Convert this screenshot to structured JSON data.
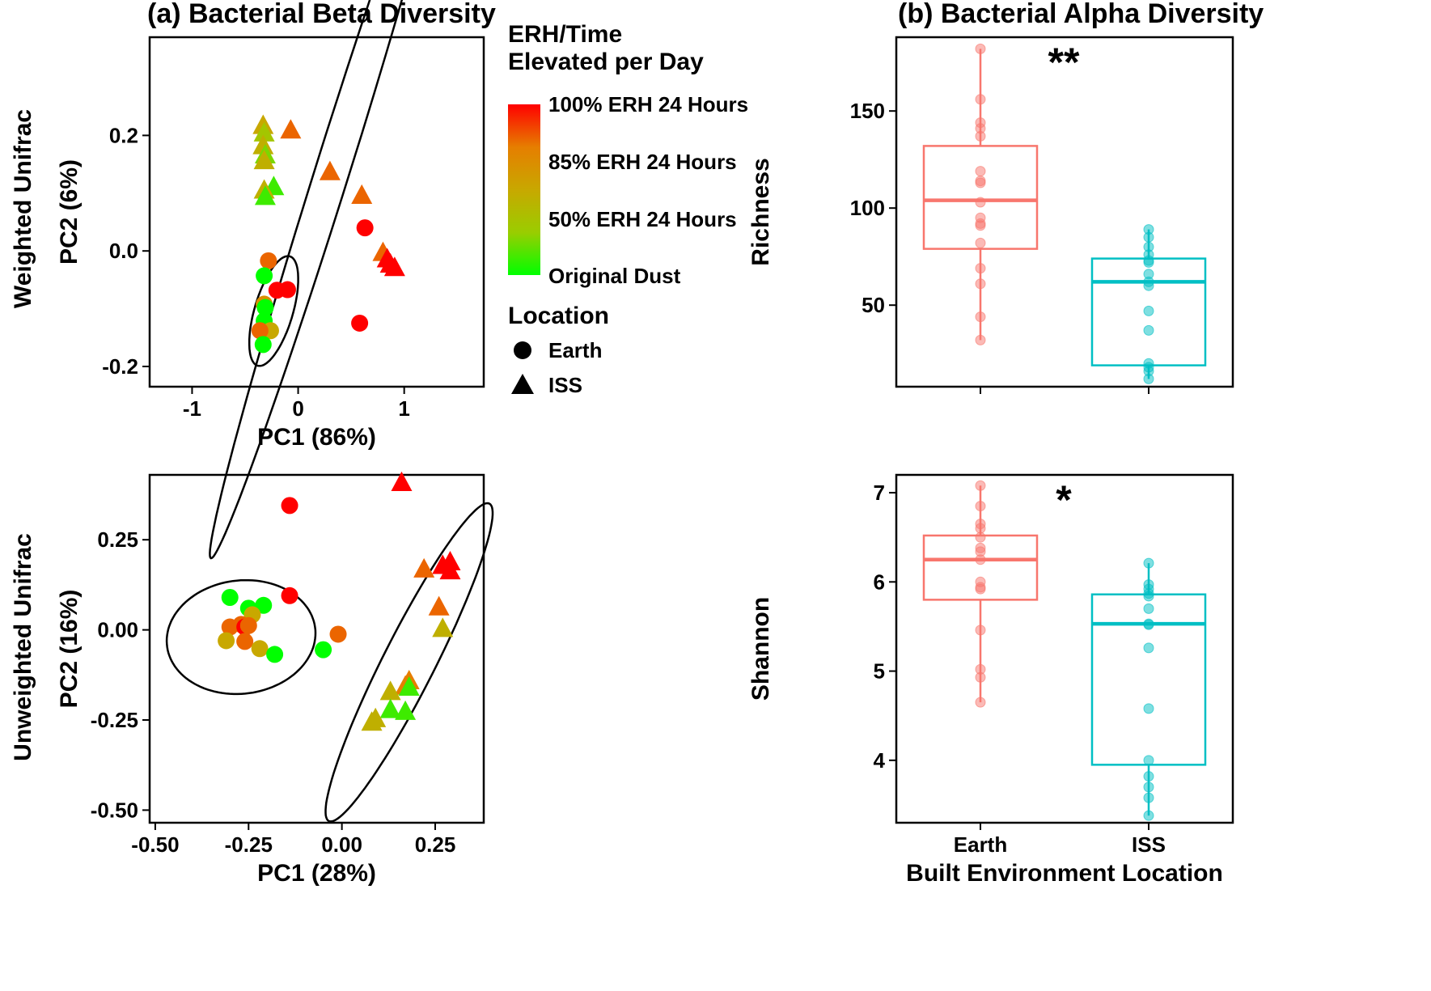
{
  "figure": {
    "panel_a_title": "(a) Bacterial Beta Diversity",
    "panel_b_title": "(b) Bacterial Alpha Diversity",
    "row_label_top": "Weighted Unifrac",
    "row_label_bottom": "Unweighted Unifrac",
    "legend": {
      "color_title_line1": "ERH/Time",
      "color_title_line2": "Elevated per Day",
      "color_labels": [
        "100% ERH 24 Hours",
        "85% ERH 24 Hours",
        "50% ERH 24 Hours",
        "Original Dust"
      ],
      "gradient_colors": [
        "#ff0000",
        "#e67e00",
        "#c8a800",
        "#9acd00",
        "#00ff00"
      ],
      "shape_title": "Location",
      "shape_labels": [
        "Earth",
        "ISS"
      ]
    }
  },
  "chart_data": [
    {
      "type": "scatter",
      "name": "weighted-unifrac",
      "xlabel": "PC1 (86%)",
      "ylabel": "PC2 (6%)",
      "xlim": [
        -1.4,
        1.75
      ],
      "ylim": [
        -0.235,
        0.37
      ],
      "xticks": [
        -1,
        0,
        1
      ],
      "xtick_labels": [
        "-1",
        "0",
        "1"
      ],
      "yticks": [
        -0.2,
        0.0,
        0.2
      ],
      "ytick_labels": [
        "-0.2",
        "0.0",
        "0.2"
      ],
      "ellipses": [
        {
          "cx": 0.32,
          "cy": 0.137,
          "rx": 1.33,
          "ry": 0.085,
          "angle_deg": 30
        },
        {
          "cx": -0.23,
          "cy": -0.104,
          "rx": 0.238,
          "ry": 0.075,
          "angle_deg": 15
        }
      ],
      "points": [
        {
          "x": -0.33,
          "y": 0.218,
          "loc": "ISS",
          "erh": 0.5
        },
        {
          "x": -0.32,
          "y": 0.205,
          "loc": "ISS",
          "erh": 0.3
        },
        {
          "x": -0.33,
          "y": 0.183,
          "loc": "ISS",
          "erh": 0.45
        },
        {
          "x": -0.31,
          "y": 0.167,
          "loc": "ISS",
          "erh": 0.2
        },
        {
          "x": -0.32,
          "y": 0.157,
          "loc": "ISS",
          "erh": 0.45
        },
        {
          "x": -0.23,
          "y": 0.112,
          "loc": "ISS",
          "erh": 0.1
        },
        {
          "x": -0.32,
          "y": 0.106,
          "loc": "ISS",
          "erh": 0.45
        },
        {
          "x": -0.31,
          "y": 0.095,
          "loc": "ISS",
          "erh": 0.1
        },
        {
          "x": -0.07,
          "y": 0.21,
          "loc": "ISS",
          "erh": 0.8
        },
        {
          "x": 0.3,
          "y": 0.138,
          "loc": "ISS",
          "erh": 0.8
        },
        {
          "x": 0.6,
          "y": 0.097,
          "loc": "ISS",
          "erh": 0.8
        },
        {
          "x": 0.8,
          "y": -0.002,
          "loc": "ISS",
          "erh": 0.8
        },
        {
          "x": 0.84,
          "y": -0.013,
          "loc": "ISS",
          "erh": 1.0
        },
        {
          "x": 0.87,
          "y": -0.022,
          "loc": "ISS",
          "erh": 1.0
        },
        {
          "x": 0.91,
          "y": -0.028,
          "loc": "ISS",
          "erh": 1.0
        },
        {
          "x": 0.63,
          "y": 0.04,
          "loc": "Earth",
          "erh": 1.0
        },
        {
          "x": 0.58,
          "y": -0.125,
          "loc": "Earth",
          "erh": 1.0
        },
        {
          "x": -0.28,
          "y": -0.017,
          "loc": "Earth",
          "erh": 0.8
        },
        {
          "x": -0.2,
          "y": -0.068,
          "loc": "Earth",
          "erh": 1.0
        },
        {
          "x": -0.1,
          "y": -0.067,
          "loc": "Earth",
          "erh": 1.0
        },
        {
          "x": -0.32,
          "y": -0.043,
          "loc": "Earth",
          "erh": 0.0
        },
        {
          "x": -0.32,
          "y": -0.092,
          "loc": "Earth",
          "erh": 0.65
        },
        {
          "x": -0.31,
          "y": -0.098,
          "loc": "Earth",
          "erh": 0.0
        },
        {
          "x": -0.32,
          "y": -0.121,
          "loc": "Earth",
          "erh": 0.0
        },
        {
          "x": -0.26,
          "y": -0.138,
          "loc": "Earth",
          "erh": 0.5
        },
        {
          "x": -0.36,
          "y": -0.138,
          "loc": "Earth",
          "erh": 0.8
        },
        {
          "x": -0.33,
          "y": -0.162,
          "loc": "Earth",
          "erh": 0.0
        }
      ]
    },
    {
      "type": "scatter",
      "name": "unweighted-unifrac",
      "xlabel": "PC1 (28%)",
      "ylabel": "PC2 (16%)",
      "xlim": [
        -0.515,
        0.38
      ],
      "ylim": [
        -0.535,
        0.43
      ],
      "xticks": [
        -0.5,
        -0.25,
        0.0,
        0.25
      ],
      "xtick_labels": [
        "-0.50",
        "-0.25",
        "0.00",
        "0.25"
      ],
      "yticks": [
        -0.5,
        -0.25,
        0.0,
        0.25
      ],
      "ytick_labels": [
        "-0.50",
        "-0.25",
        "0.00",
        "0.25"
      ],
      "ellipses": [
        {
          "cx": -0.27,
          "cy": -0.02,
          "rx": 0.2,
          "ry": 0.157,
          "angle_deg": 8
        },
        {
          "cx": 0.18,
          "cy": -0.09,
          "rx": 0.49,
          "ry": 0.07,
          "angle_deg": 64
        }
      ],
      "points": [
        {
          "x": 0.16,
          "y": 0.41,
          "loc": "ISS",
          "erh": 1.0
        },
        {
          "x": 0.22,
          "y": 0.17,
          "loc": "ISS",
          "erh": 0.8
        },
        {
          "x": 0.27,
          "y": 0.18,
          "loc": "ISS",
          "erh": 1.0
        },
        {
          "x": 0.29,
          "y": 0.19,
          "loc": "ISS",
          "erh": 1.0
        },
        {
          "x": 0.29,
          "y": 0.165,
          "loc": "ISS",
          "erh": 1.0
        },
        {
          "x": 0.26,
          "y": 0.065,
          "loc": "ISS",
          "erh": 0.8
        },
        {
          "x": 0.27,
          "y": 0.005,
          "loc": "ISS",
          "erh": 0.45
        },
        {
          "x": 0.18,
          "y": -0.14,
          "loc": "ISS",
          "erh": 0.75
        },
        {
          "x": 0.17,
          "y": -0.155,
          "loc": "ISS",
          "erh": 0.75
        },
        {
          "x": 0.18,
          "y": -0.158,
          "loc": "ISS",
          "erh": 0.1
        },
        {
          "x": 0.13,
          "y": -0.17,
          "loc": "ISS",
          "erh": 0.45
        },
        {
          "x": 0.13,
          "y": -0.22,
          "loc": "ISS",
          "erh": 0.1
        },
        {
          "x": 0.17,
          "y": -0.225,
          "loc": "ISS",
          "erh": 0.1
        },
        {
          "x": 0.09,
          "y": -0.245,
          "loc": "ISS",
          "erh": 0.45
        },
        {
          "x": 0.08,
          "y": -0.255,
          "loc": "ISS",
          "erh": 0.45
        },
        {
          "x": -0.14,
          "y": 0.345,
          "loc": "Earth",
          "erh": 1.0
        },
        {
          "x": -0.14,
          "y": 0.095,
          "loc": "Earth",
          "erh": 1.0
        },
        {
          "x": -0.3,
          "y": 0.09,
          "loc": "Earth",
          "erh": 0.0
        },
        {
          "x": -0.25,
          "y": 0.06,
          "loc": "Earth",
          "erh": 0.0
        },
        {
          "x": -0.21,
          "y": 0.068,
          "loc": "Earth",
          "erh": 0.0
        },
        {
          "x": -0.24,
          "y": 0.042,
          "loc": "Earth",
          "erh": 0.5
        },
        {
          "x": -0.3,
          "y": 0.008,
          "loc": "Earth",
          "erh": 0.8
        },
        {
          "x": -0.27,
          "y": 0.015,
          "loc": "Earth",
          "erh": 0.8
        },
        {
          "x": -0.26,
          "y": 0.008,
          "loc": "Earth",
          "erh": 1.0
        },
        {
          "x": -0.25,
          "y": 0.012,
          "loc": "Earth",
          "erh": 0.8
        },
        {
          "x": -0.31,
          "y": -0.03,
          "loc": "Earth",
          "erh": 0.5
        },
        {
          "x": -0.26,
          "y": -0.032,
          "loc": "Earth",
          "erh": 0.8
        },
        {
          "x": -0.22,
          "y": -0.052,
          "loc": "Earth",
          "erh": 0.5
        },
        {
          "x": -0.18,
          "y": -0.068,
          "loc": "Earth",
          "erh": 0.0
        },
        {
          "x": -0.05,
          "y": -0.055,
          "loc": "Earth",
          "erh": 0.0
        },
        {
          "x": -0.01,
          "y": -0.012,
          "loc": "Earth",
          "erh": 0.8
        }
      ]
    },
    {
      "type": "box",
      "name": "richness",
      "xlabel": "",
      "ylabel": "Richness",
      "ylim": [
        8,
        188
      ],
      "yticks": [
        50,
        100,
        150
      ],
      "ytick_labels": [
        "50",
        "100",
        "150"
      ],
      "categories": [
        "Earth",
        "ISS"
      ],
      "show_category_labels": false,
      "significance": "**",
      "boxes": [
        {
          "category": "Earth",
          "color": "#f8766d",
          "min": 32,
          "q1": 79,
          "median": 104,
          "q3": 132,
          "max": 182,
          "points": [
            182,
            156,
            144,
            141,
            137,
            119,
            114,
            113,
            103,
            95,
            92,
            91,
            82,
            69,
            61,
            44,
            32
          ]
        },
        {
          "category": "ISS",
          "color": "#00bfc4",
          "min": 12,
          "q1": 19,
          "median": 62,
          "q3": 74,
          "max": 89,
          "points": [
            89,
            85,
            80,
            76,
            73,
            72,
            66,
            62,
            60,
            47,
            37,
            20,
            18,
            16,
            12
          ]
        }
      ]
    },
    {
      "type": "box",
      "name": "shannon",
      "xlabel": "Built Environment Location",
      "ylabel": "Shannon",
      "ylim": [
        3.3,
        7.2
      ],
      "yticks": [
        4,
        5,
        6,
        7
      ],
      "ytick_labels": [
        "4",
        "5",
        "6",
        "7"
      ],
      "categories": [
        "Earth",
        "ISS"
      ],
      "show_category_labels": true,
      "significance": "*",
      "boxes": [
        {
          "category": "Earth",
          "color": "#f8766d",
          "min": 4.65,
          "q1": 5.8,
          "median": 6.25,
          "q3": 6.52,
          "max": 7.08,
          "points": [
            7.08,
            6.85,
            6.65,
            6.6,
            6.5,
            6.38,
            6.34,
            6.25,
            6.0,
            5.94,
            5.92,
            5.46,
            5.02,
            4.93,
            4.65
          ]
        },
        {
          "category": "ISS",
          "color": "#00bfc4",
          "min": 3.38,
          "q1": 3.95,
          "median": 5.53,
          "q3": 5.86,
          "max": 6.21,
          "points": [
            6.21,
            5.97,
            5.92,
            5.87,
            5.84,
            5.7,
            5.53,
            5.52,
            5.26,
            4.58,
            4.0,
            3.82,
            3.7,
            3.58,
            3.38
          ]
        }
      ]
    }
  ]
}
